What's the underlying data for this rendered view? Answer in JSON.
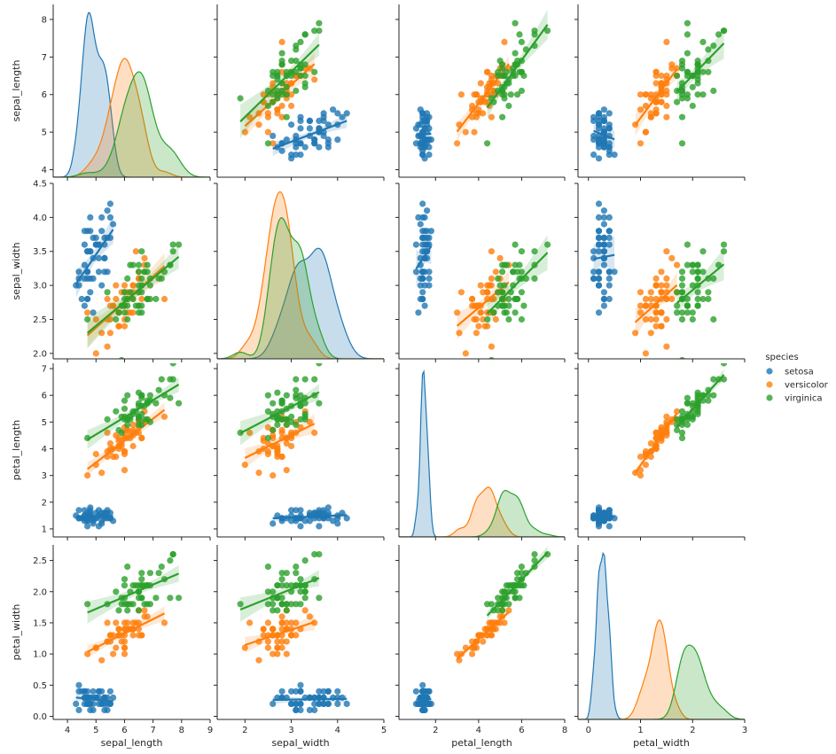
{
  "chart_data": {
    "type": "pairplot",
    "variables": [
      "sepal_length",
      "sepal_width",
      "petal_length",
      "petal_width"
    ],
    "hue": "species",
    "legend": {
      "title": "species",
      "placement": "right",
      "entries": [
        {
          "name": "setosa",
          "color": "#1f77b4"
        },
        {
          "name": "versicolor",
          "color": "#ff7f0e"
        },
        {
          "name": "virginica",
          "color": "#2ca02c"
        }
      ]
    },
    "axes": {
      "sepal_length": {
        "range": [
          3.5,
          9
        ],
        "ticks": [
          "4",
          "5",
          "6",
          "7",
          "8",
          "9"
        ],
        "ticks_y": [
          "4",
          "5",
          "6",
          "7",
          "8"
        ],
        "yrange": [
          3.8,
          8.4
        ]
      },
      "sepal_width": {
        "range": [
          1.4,
          5
        ],
        "ticks": [
          "2",
          "3",
          "4",
          "5"
        ],
        "ticks_y": [
          "2.0",
          "2.5",
          "3.0",
          "3.5",
          "4.0",
          "4.5"
        ],
        "yrange": [
          1.92,
          4.5
        ]
      },
      "petal_length": {
        "range": [
          0.3,
          8
        ],
        "ticks": [
          "2",
          "4",
          "6",
          "8"
        ],
        "ticks_y": [
          "1",
          "2",
          "3",
          "4",
          "5",
          "6",
          "7"
        ],
        "yrange": [
          0.7,
          7.2
        ]
      },
      "petal_width": {
        "range": [
          -0.2,
          3
        ],
        "ticks": [
          "0",
          "1",
          "2",
          "3"
        ],
        "ticks_y": [
          "0.0",
          "0.5",
          "1.0",
          "1.5",
          "2.0",
          "2.5"
        ],
        "yrange": [
          -0.05,
          2.75
        ]
      }
    },
    "series": [
      {
        "name": "setosa",
        "stats": {
          "sepal_length": [
            5.0,
            0.35
          ],
          "sepal_width": [
            3.43,
            0.38
          ],
          "petal_length": [
            1.46,
            0.17
          ],
          "petal_width": [
            0.25,
            0.1
          ]
        }
      },
      {
        "name": "versicolor",
        "stats": {
          "sepal_length": [
            5.94,
            0.52
          ],
          "sepal_width": [
            2.77,
            0.31
          ],
          "petal_length": [
            4.26,
            0.47
          ],
          "petal_width": [
            1.33,
            0.2
          ]
        }
      },
      {
        "name": "virginica",
        "stats": {
          "sepal_length": [
            6.59,
            0.64
          ],
          "sepal_width": [
            2.97,
            0.32
          ],
          "petal_length": [
            5.55,
            0.55
          ],
          "petal_width": [
            2.03,
            0.27
          ]
        }
      }
    ],
    "regression": "linear with confidence band",
    "diagonal": "kde",
    "grid": false
  }
}
